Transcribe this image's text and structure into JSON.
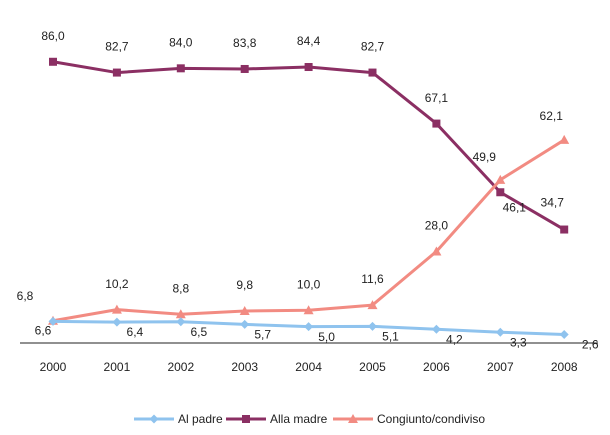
{
  "chart_data": {
    "type": "line",
    "title": "",
    "xlabel": "",
    "ylabel": "",
    "ylim": [
      0,
      90
    ],
    "grid": false,
    "legend_position": "bottom",
    "categories": [
      "2000",
      "2001",
      "2002",
      "2003",
      "2004",
      "2005",
      "2006",
      "2007",
      "2008"
    ],
    "series": [
      {
        "name": "Al padre",
        "color": "#8fc3ee",
        "marker": "diamond",
        "values": [
          6.6,
          6.4,
          6.5,
          5.7,
          5.0,
          5.1,
          4.2,
          3.3,
          2.6
        ],
        "labels": [
          "6,6",
          "6,4",
          "6,5",
          "5,7",
          "5,0",
          "5,1",
          "4,2",
          "3,3",
          "2,6"
        ]
      },
      {
        "name": "Alla madre",
        "color": "#8b2f63",
        "marker": "square",
        "values": [
          86.0,
          82.7,
          84.0,
          83.8,
          84.4,
          82.7,
          67.1,
          46.1,
          34.7
        ],
        "labels": [
          "86,0",
          "82,7",
          "84,0",
          "83,8",
          "84,4",
          "82,7",
          "67,1",
          "46,1",
          "34,7"
        ]
      },
      {
        "name": "Congiunto/condiviso",
        "color": "#f28b82",
        "marker": "triangle",
        "values": [
          6.8,
          10.2,
          8.8,
          9.8,
          10.0,
          11.6,
          28.0,
          49.9,
          62.1
        ],
        "labels": [
          "6,8",
          "10,2",
          "8,8",
          "9,8",
          "10,0",
          "11,6",
          "28,0",
          "49,9",
          "62,1"
        ]
      }
    ]
  }
}
